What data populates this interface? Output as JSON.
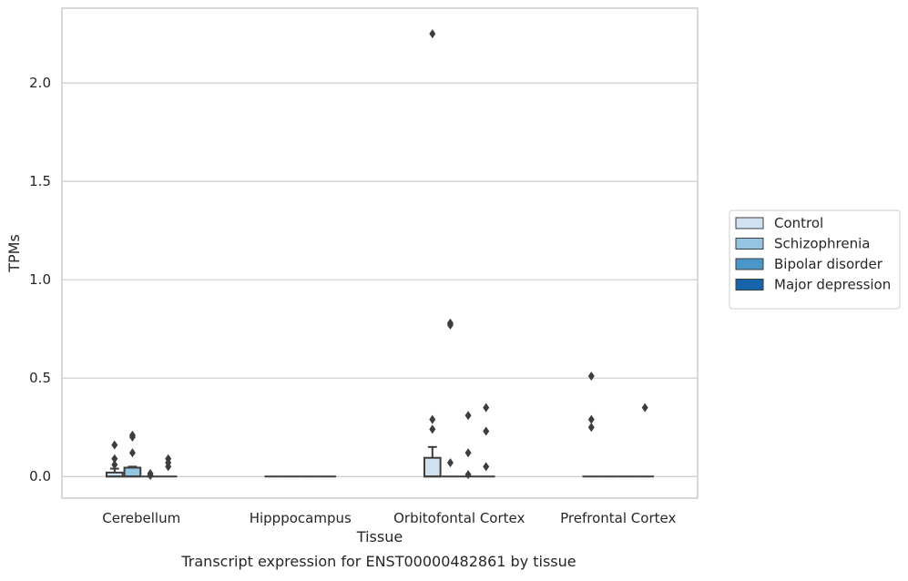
{
  "caption": "Transcript expression for ENST00000482861 by tissue",
  "chart_data": {
    "type": "box",
    "title": "",
    "xlabel": "Tissue",
    "ylabel": "TPMs",
    "ylim": [
      -0.11,
      2.38
    ],
    "yticks": [
      0.0,
      0.5,
      1.0,
      1.5,
      2.0
    ],
    "ytick_labels": [
      "0.0",
      "0.5",
      "1.0",
      "1.5",
      "2.0"
    ],
    "grid": "horizontal",
    "legend_position": "right",
    "categories": [
      "Cerebellum",
      "Hipppocampus",
      "Orbitofontal Cortex",
      "Prefrontal Cortex"
    ],
    "series": [
      {
        "name": "Control",
        "color": "#d0e1f2",
        "boxes": [
          {
            "q1": 0.0,
            "median": 0.0,
            "q3": 0.02,
            "whisker_low": 0.0,
            "whisker_high": 0.04,
            "outliers": [
              0.06,
              0.09,
              0.16
            ]
          },
          {
            "q1": 0.0,
            "median": 0.0,
            "q3": 0.0,
            "whisker_low": 0.0,
            "whisker_high": 0.0,
            "outliers": []
          },
          {
            "q1": 0.0,
            "median": 0.0,
            "q3": 0.095,
            "whisker_low": 0.0,
            "whisker_high": 0.15,
            "outliers": [
              0.24,
              0.29,
              2.25
            ]
          },
          {
            "q1": 0.0,
            "median": 0.0,
            "q3": 0.0,
            "whisker_low": 0.0,
            "whisker_high": 0.0,
            "outliers": [
              0.25,
              0.29,
              0.51
            ]
          }
        ]
      },
      {
        "name": "Schizophrenia",
        "color": "#94c4df",
        "boxes": [
          {
            "q1": 0.0,
            "median": 0.0,
            "q3": 0.045,
            "whisker_low": 0.0,
            "whisker_high": 0.05,
            "outliers": [
              0.12,
              0.2,
              0.21
            ]
          },
          {
            "q1": 0.0,
            "median": 0.0,
            "q3": 0.0,
            "whisker_low": 0.0,
            "whisker_high": 0.0,
            "outliers": []
          },
          {
            "q1": 0.0,
            "median": 0.0,
            "q3": 0.0,
            "whisker_low": 0.0,
            "whisker_high": 0.0,
            "outliers": [
              0.07,
              0.77,
              0.78
            ]
          },
          {
            "q1": 0.0,
            "median": 0.0,
            "q3": 0.0,
            "whisker_low": 0.0,
            "whisker_high": 0.0,
            "outliers": []
          }
        ]
      },
      {
        "name": "Bipolar disorder",
        "color": "#4a98c9",
        "boxes": [
          {
            "q1": 0.0,
            "median": 0.0,
            "q3": 0.0,
            "whisker_low": 0.0,
            "whisker_high": 0.0,
            "outliers": [
              0.005,
              0.015
            ]
          },
          {
            "q1": 0.0,
            "median": 0.0,
            "q3": 0.0,
            "whisker_low": 0.0,
            "whisker_high": 0.0,
            "outliers": []
          },
          {
            "q1": 0.0,
            "median": 0.0,
            "q3": 0.0,
            "whisker_low": 0.0,
            "whisker_high": 0.0,
            "outliers": [
              0.01,
              0.12,
              0.31
            ]
          },
          {
            "q1": 0.0,
            "median": 0.0,
            "q3": 0.0,
            "whisker_low": 0.0,
            "whisker_high": 0.0,
            "outliers": []
          }
        ]
      },
      {
        "name": "Major depression",
        "color": "#1764ab",
        "boxes": [
          {
            "q1": 0.0,
            "median": 0.0,
            "q3": 0.0,
            "whisker_low": 0.0,
            "whisker_high": 0.0,
            "outliers": [
              0.05,
              0.07,
              0.09
            ]
          },
          {
            "q1": 0.0,
            "median": 0.0,
            "q3": 0.0,
            "whisker_low": 0.0,
            "whisker_high": 0.0,
            "outliers": []
          },
          {
            "q1": 0.0,
            "median": 0.0,
            "q3": 0.0,
            "whisker_low": 0.0,
            "whisker_high": 0.0,
            "outliers": [
              0.05,
              0.23,
              0.35
            ]
          },
          {
            "q1": 0.0,
            "median": 0.0,
            "q3": 0.0,
            "whisker_low": 0.0,
            "whisker_high": 0.0,
            "outliers": [
              0.35
            ]
          }
        ]
      }
    ]
  }
}
